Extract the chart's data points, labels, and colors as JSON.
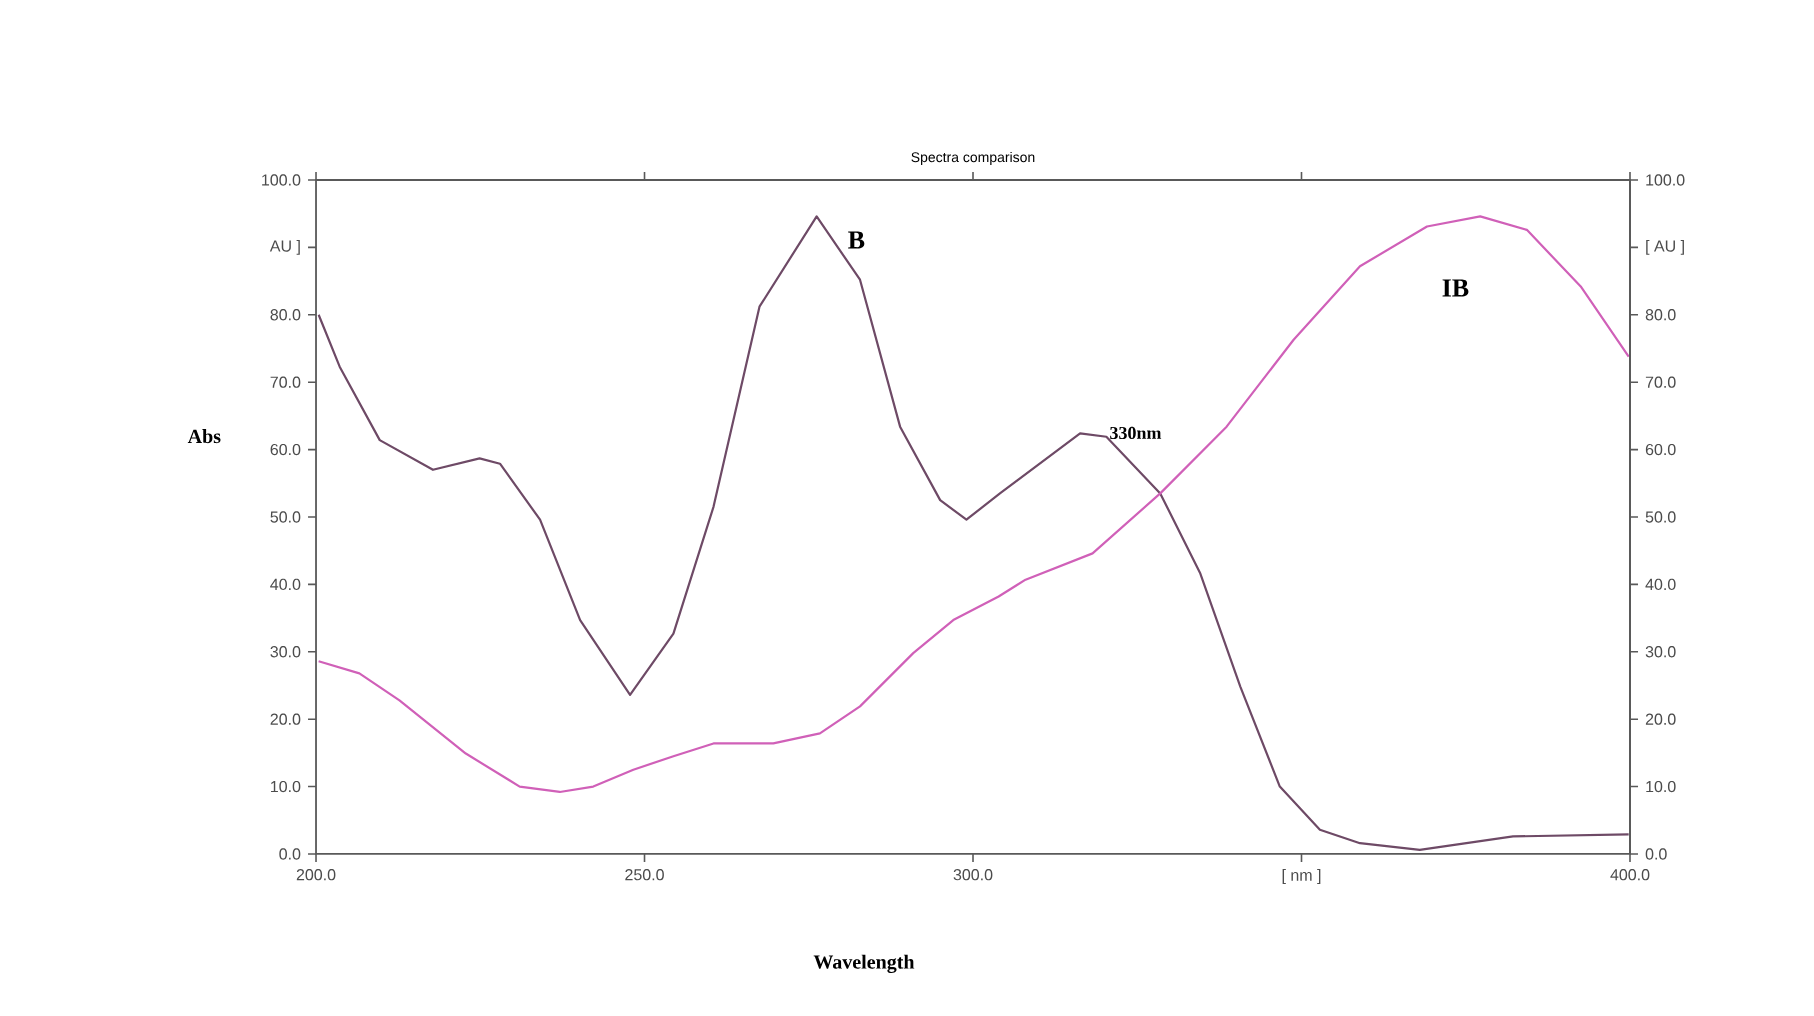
{
  "chart_data": {
    "type": "line",
    "title": "Spectra comparison",
    "xlabel": "Wavelength",
    "ylabel": "Abs",
    "xlim": [
      200,
      400
    ],
    "xticks": [
      {
        "value": 200,
        "label": "200.0"
      },
      {
        "value": 250,
        "label": "250.0"
      },
      {
        "value": 300,
        "label": "300.0"
      },
      {
        "value": 350,
        "label": "[ nm ]"
      },
      {
        "value": 400,
        "label": "400.0"
      }
    ],
    "ylim": [
      0,
      100
    ],
    "yticks": [
      {
        "value": 0,
        "label": "0.0"
      },
      {
        "value": 10,
        "label": "10.0"
      },
      {
        "value": 20,
        "label": "20.0"
      },
      {
        "value": 30,
        "label": "30.0"
      },
      {
        "value": 40,
        "label": "40.0"
      },
      {
        "value": 50,
        "label": "50.0"
      },
      {
        "value": 60,
        "label": "60.0"
      },
      {
        "value": 70,
        "label": "70.0"
      },
      {
        "value": 80,
        "label": "80.0"
      },
      {
        "value": 90,
        "label": "AU ]"
      },
      {
        "value": 100,
        "label": "100.0"
      }
    ],
    "y2lim": [
      0,
      100
    ],
    "y2ticks": [
      {
        "value": 0,
        "label": "0.0"
      },
      {
        "value": 10,
        "label": "10.0"
      },
      {
        "value": 20,
        "label": "20.0"
      },
      {
        "value": 30,
        "label": "30.0"
      },
      {
        "value": 40,
        "label": "40.0"
      },
      {
        "value": 50,
        "label": "50.0"
      },
      {
        "value": 60,
        "label": "60.0"
      },
      {
        "value": 70,
        "label": "70.0"
      },
      {
        "value": 80,
        "label": "80.0"
      },
      {
        "value": 90,
        "label": "[ AU ]"
      },
      {
        "value": 100,
        "label": "100.0"
      }
    ],
    "series": [
      {
        "name": "B",
        "color": "#6e4a66",
        "x": [
          200.4,
          203.6,
          209.7,
          217.8,
          224.9,
          228.0,
          234.1,
          240.2,
          247.8,
          254.4,
          260.5,
          267.5,
          276.2,
          282.8,
          288.9,
          295.0,
          299.0,
          304.1,
          316.3,
          320.3,
          328.5,
          334.6,
          340.7,
          346.7,
          352.8,
          358.9,
          368.0,
          375.1,
          382.2,
          399.8
        ],
        "values": [
          80.0,
          72.3,
          61.4,
          57.0,
          58.7,
          57.9,
          49.6,
          34.7,
          23.6,
          32.7,
          51.5,
          81.2,
          94.6,
          85.2,
          63.4,
          52.5,
          49.6,
          53.5,
          62.4,
          61.9,
          53.5,
          41.6,
          24.8,
          10.0,
          3.6,
          1.6,
          0.6,
          1.6,
          2.6,
          2.9
        ]
      },
      {
        "name": "IB",
        "color": "#d060b8",
        "x": [
          200.4,
          206.6,
          212.7,
          222.8,
          231.0,
          237.1,
          242.2,
          248.3,
          254.4,
          260.5,
          269.6,
          276.7,
          282.8,
          290.9,
          297.0,
          303.9,
          308.0,
          318.2,
          328.5,
          338.6,
          348.8,
          358.9,
          369.1,
          377.2,
          384.3,
          392.5,
          399.8
        ],
        "values": [
          28.6,
          26.8,
          22.8,
          14.9,
          10.0,
          9.2,
          10.0,
          12.5,
          14.5,
          16.4,
          16.4,
          17.9,
          21.9,
          29.8,
          34.7,
          38.2,
          40.7,
          44.6,
          53.5,
          63.4,
          76.3,
          87.2,
          93.1,
          94.6,
          92.6,
          84.2,
          73.8
        ]
      }
    ],
    "annotations": [
      {
        "text": "330nm",
        "x": 320,
        "y": 62
      }
    ]
  }
}
